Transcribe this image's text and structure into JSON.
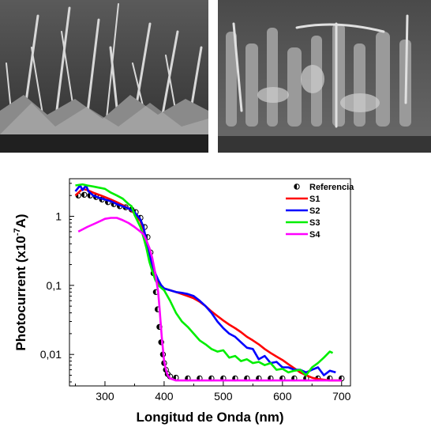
{
  "images": {
    "left": {
      "icon": "sem-micrograph-nanowires"
    },
    "right": {
      "icon": "sem-micrograph-nanostructures"
    }
  },
  "chart_data": {
    "type": "line",
    "title": "",
    "xlabel": "Longitud de Onda (nm)",
    "ylabel": "Photocurrent (x10",
    "ylabel_exp": "-7",
    "ylabel_unit": "A)",
    "xlim": [
      240,
      715
    ],
    "ylim": [
      0.0035,
      3.5
    ],
    "yscale": "log",
    "x_ticks": [
      300,
      400,
      500,
      600,
      700
    ],
    "x_tick_labels": [
      "300",
      "400",
      "500",
      "600",
      "700"
    ],
    "y_ticks": [
      0.01,
      0.1,
      1
    ],
    "y_tick_labels": [
      "0,01",
      "0,1",
      "1"
    ],
    "grid": false,
    "legend_position": "top-right",
    "series": [
      {
        "name": "Referencia",
        "color": "#000000",
        "style": "markers",
        "x": [
          255,
          265,
          275,
          285,
          295,
          305,
          315,
          325,
          335,
          345,
          352,
          360,
          367,
          372,
          377,
          382,
          386,
          389,
          392,
          395,
          398,
          400,
          403,
          406,
          410,
          420,
          440,
          460,
          480,
          500,
          520,
          540,
          560,
          580,
          600,
          620,
          640,
          660,
          680,
          700
        ],
        "y": [
          2.0,
          2.05,
          2.0,
          1.9,
          1.75,
          1.6,
          1.5,
          1.4,
          1.35,
          1.25,
          1.15,
          0.95,
          0.7,
          0.5,
          0.3,
          0.15,
          0.08,
          0.045,
          0.025,
          0.015,
          0.01,
          0.0075,
          0.006,
          0.0052,
          0.0048,
          0.0046,
          0.0045,
          0.0045,
          0.0045,
          0.0045,
          0.0045,
          0.0045,
          0.0045,
          0.0045,
          0.0045,
          0.0045,
          0.0045,
          0.0045,
          0.0045,
          0.0045
        ]
      },
      {
        "name": "S1",
        "color": "#ff0000",
        "style": "line",
        "x": [
          250,
          262,
          270,
          280,
          290,
          300,
          310,
          320,
          330,
          340,
          350,
          360,
          365,
          370,
          375,
          380,
          385,
          390,
          395,
          400,
          410,
          420,
          430,
          440,
          450,
          460,
          470,
          480,
          490,
          500,
          510,
          520,
          530,
          540,
          550,
          560,
          570,
          580,
          590,
          600,
          610,
          620,
          630,
          640,
          650,
          660,
          670,
          680,
          690,
          700
        ],
        "y": [
          2.0,
          2.5,
          2.4,
          2.2,
          2.05,
          1.9,
          1.75,
          1.6,
          1.45,
          1.3,
          1.1,
          0.85,
          0.65,
          0.42,
          0.26,
          0.18,
          0.14,
          0.11,
          0.1,
          0.09,
          0.085,
          0.08,
          0.075,
          0.07,
          0.065,
          0.058,
          0.05,
          0.042,
          0.036,
          0.031,
          0.027,
          0.024,
          0.021,
          0.018,
          0.016,
          0.014,
          0.012,
          0.0105,
          0.0093,
          0.0083,
          0.0072,
          0.0063,
          0.0055,
          0.005,
          0.0046,
          0.0044,
          0.0043,
          0.0042,
          0.0042,
          0.0042
        ]
      },
      {
        "name": "S2",
        "color": "#0000ff",
        "style": "line",
        "x": [
          250,
          258,
          262,
          268,
          272,
          280,
          290,
          300,
          310,
          320,
          330,
          340,
          350,
          360,
          365,
          370,
          375,
          380,
          385,
          390,
          395,
          400,
          410,
          420,
          430,
          440,
          450,
          460,
          470,
          480,
          490,
          500,
          510,
          520,
          530,
          540,
          550,
          560,
          570,
          580,
          590,
          600,
          610,
          620,
          630,
          640,
          650,
          660,
          670,
          680,
          690
        ],
        "y": [
          2.3,
          2.8,
          2.4,
          2.8,
          2.3,
          2.0,
          1.85,
          1.75,
          1.65,
          1.5,
          1.4,
          1.3,
          1.15,
          0.9,
          0.7,
          0.45,
          0.28,
          0.2,
          0.15,
          0.12,
          0.1,
          0.09,
          0.085,
          0.08,
          0.078,
          0.075,
          0.07,
          0.06,
          0.05,
          0.04,
          0.03,
          0.024,
          0.02,
          0.018,
          0.015,
          0.0125,
          0.012,
          0.0085,
          0.0095,
          0.0075,
          0.0078,
          0.0065,
          0.0065,
          0.006,
          0.006,
          0.0055,
          0.006,
          0.0065,
          0.005,
          0.0058,
          0.0055
        ]
      },
      {
        "name": "S3",
        "color": "#00ee00",
        "style": "line",
        "x": [
          250,
          262,
          270,
          280,
          290,
          300,
          310,
          320,
          330,
          340,
          345,
          350,
          360,
          365,
          370,
          375,
          380,
          385,
          390,
          400,
          410,
          420,
          430,
          440,
          450,
          460,
          470,
          480,
          490,
          500,
          510,
          520,
          530,
          540,
          550,
          560,
          570,
          580,
          590,
          600,
          610,
          620,
          630,
          640,
          650,
          660,
          670,
          680,
          685
        ],
        "y": [
          2.8,
          2.9,
          2.8,
          2.7,
          2.6,
          2.5,
          2.2,
          2.0,
          1.8,
          1.5,
          1.4,
          1.05,
          0.7,
          0.5,
          0.35,
          0.22,
          0.16,
          0.12,
          0.1,
          0.085,
          0.06,
          0.04,
          0.03,
          0.025,
          0.02,
          0.016,
          0.014,
          0.012,
          0.011,
          0.0115,
          0.009,
          0.0095,
          0.008,
          0.0085,
          0.0075,
          0.0078,
          0.007,
          0.0075,
          0.006,
          0.0062,
          0.0055,
          0.0058,
          0.006,
          0.005,
          0.0065,
          0.0075,
          0.009,
          0.011,
          0.0105
        ]
      },
      {
        "name": "S4",
        "color": "#ff00ff",
        "style": "line",
        "x": [
          255,
          270,
          285,
          300,
          310,
          320,
          330,
          340,
          350,
          360,
          365,
          370,
          375,
          380,
          385,
          390,
          392,
          394,
          396,
          398,
          400,
          403,
          406,
          410,
          420,
          440,
          460,
          480,
          500,
          520,
          540,
          560,
          580,
          600,
          620,
          640,
          660,
          680,
          700
        ],
        "y": [
          0.6,
          0.7,
          0.8,
          0.92,
          0.95,
          0.95,
          0.88,
          0.8,
          0.7,
          0.6,
          0.55,
          0.45,
          0.35,
          0.25,
          0.15,
          0.08,
          0.05,
          0.03,
          0.018,
          0.012,
          0.008,
          0.006,
          0.005,
          0.0045,
          0.0042,
          0.0042,
          0.0042,
          0.0042,
          0.0042,
          0.0042,
          0.0042,
          0.0042,
          0.0042,
          0.0042,
          0.0042,
          0.0042,
          0.0042,
          0.0042,
          0.0042
        ]
      }
    ]
  }
}
